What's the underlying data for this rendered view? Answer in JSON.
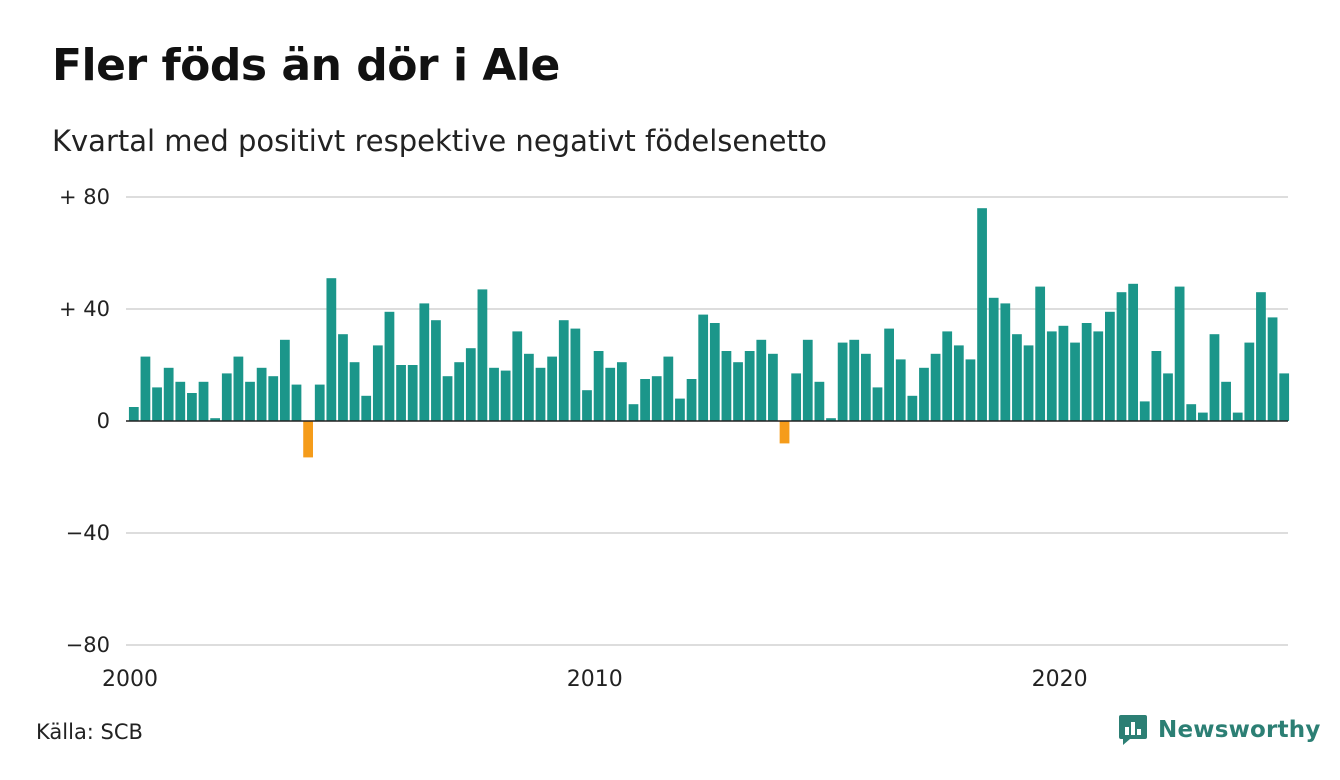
{
  "title": "Fler föds än dör i Ale",
  "subtitle": "Kvartal med positivt respektive negativt födelsenetto",
  "source": "Källa: SCB",
  "brand": "Newsworthy",
  "colors": {
    "positive": "#1b968a",
    "negative": "#f59c1a",
    "grid": "#dddddd",
    "axis": "#222222",
    "brand": "#2c7f74"
  },
  "chart_data": {
    "type": "bar",
    "title": "Fler föds än dör i Ale",
    "subtitle": "Kvartal med positivt respektive negativt födelsenetto",
    "x_start": 2000,
    "x_step": 0.25,
    "xlim": [
      2000,
      2025
    ],
    "x_ticks": [
      2000,
      2010,
      2020
    ],
    "x_tick_labels": [
      "2000",
      "2010",
      "2020"
    ],
    "ylim": [
      -80,
      80
    ],
    "y_ticks": [
      80,
      40,
      0,
      -40,
      -80
    ],
    "y_tick_labels": [
      "+ 80",
      "+ 40",
      "0",
      "−40",
      "−80"
    ],
    "grid": true,
    "values": [
      5,
      23,
      12,
      19,
      14,
      10,
      14,
      1,
      17,
      23,
      14,
      19,
      16,
      29,
      13,
      -13,
      13,
      51,
      31,
      21,
      9,
      27,
      39,
      20,
      20,
      42,
      36,
      16,
      21,
      26,
      47,
      19,
      18,
      32,
      24,
      19,
      23,
      36,
      33,
      11,
      25,
      19,
      21,
      6,
      15,
      16,
      23,
      8,
      15,
      38,
      35,
      25,
      21,
      25,
      29,
      24,
      -8,
      17,
      29,
      14,
      1,
      28,
      29,
      24,
      12,
      33,
      22,
      9,
      19,
      24,
      32,
      27,
      22,
      76,
      44,
      42,
      31,
      27,
      48,
      32,
      34,
      28,
      35,
      32,
      39,
      46,
      49,
      7,
      25,
      17,
      48,
      6,
      3,
      31,
      14,
      3,
      28,
      46,
      37,
      17
    ]
  }
}
